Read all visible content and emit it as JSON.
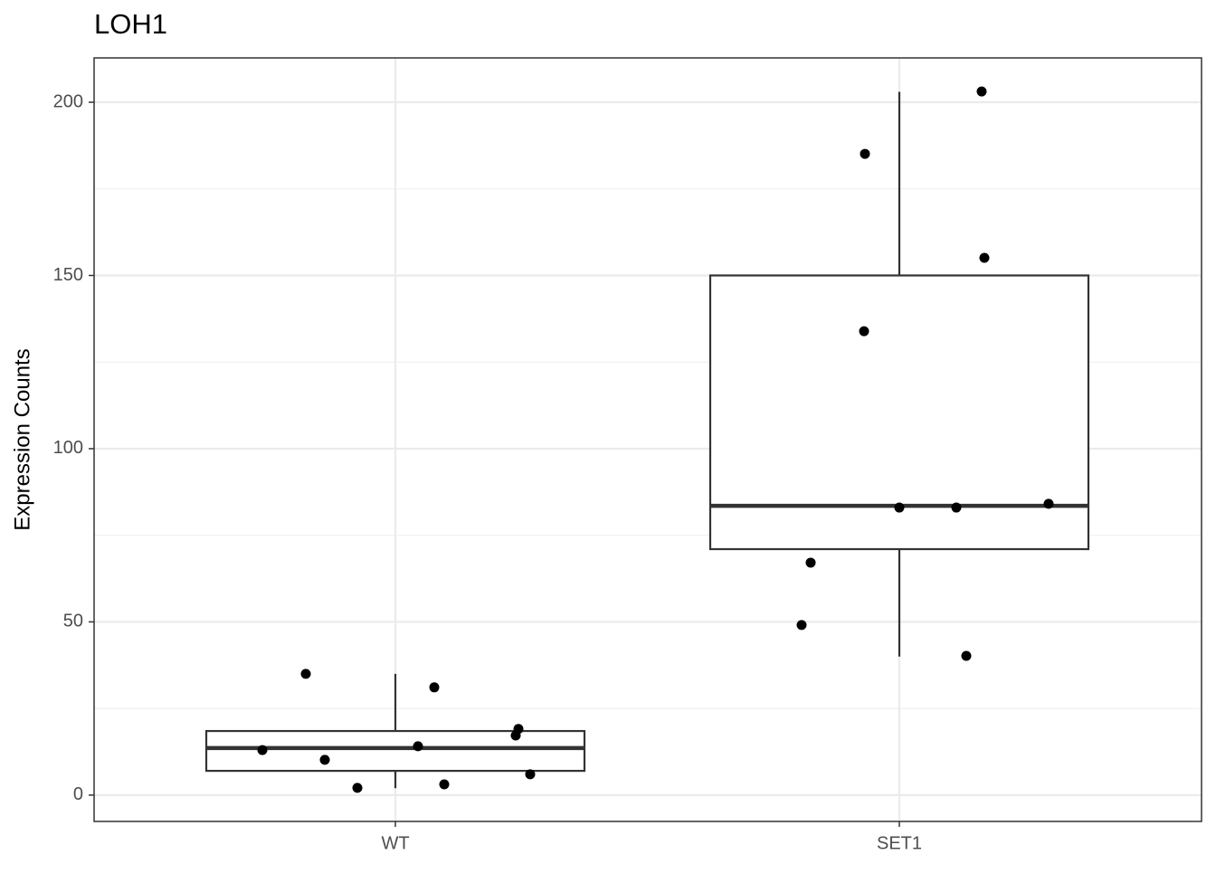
{
  "chart_data": {
    "type": "box",
    "title": "LOH1",
    "y_label": "Expression Counts",
    "categories": [
      "WT",
      "SET1"
    ],
    "boxes": [
      {
        "low": 2,
        "q1": 7,
        "median": 13.6,
        "q3": 18.5,
        "high": 35
      },
      {
        "low": 40,
        "q1": 71,
        "median": 83.5,
        "q3": 150,
        "high": 203
      }
    ],
    "points": [
      [
        13,
        35,
        10.2,
        2.1,
        14.1,
        31.1,
        3.1,
        17.2,
        19.1,
        6
      ],
      [
        185.1,
        203.1,
        155.1,
        133.9,
        83,
        83,
        84.1,
        67.1,
        49.1,
        40.2
      ]
    ],
    "box_color": "#333333",
    "point_color": "#000000",
    "ylim": [
      -7.6,
      212.8
    ],
    "yticks": [
      0,
      50,
      100,
      150,
      200
    ],
    "yminor": [
      25,
      75,
      125,
      175
    ],
    "grid": true
  }
}
